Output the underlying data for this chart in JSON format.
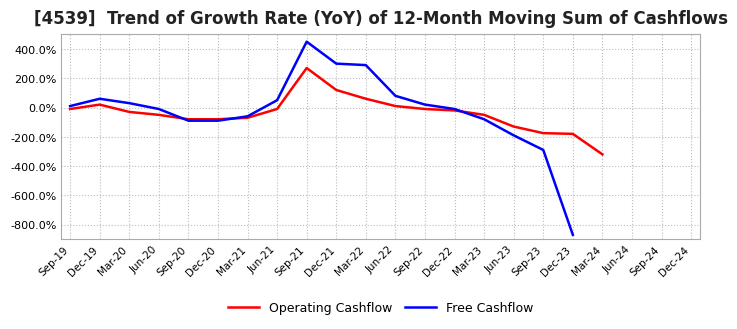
{
  "title": "[4539]  Trend of Growth Rate (YoY) of 12-Month Moving Sum of Cashflows",
  "title_fontsize": 12,
  "title_color": "#222222",
  "background_color": "#ffffff",
  "grid_color": "#bbbbbb",
  "ylim": [
    -900,
    500
  ],
  "yticks": [
    400,
    200,
    0,
    -200,
    -400,
    -600,
    -800
  ],
  "legend_labels": [
    "Operating Cashflow",
    "Free Cashflow"
  ],
  "legend_colors": [
    "red",
    "blue"
  ],
  "x_labels": [
    "Sep-19",
    "Dec-19",
    "Mar-20",
    "Jun-20",
    "Sep-20",
    "Dec-20",
    "Mar-21",
    "Jun-21",
    "Sep-21",
    "Dec-21",
    "Mar-22",
    "Jun-22",
    "Sep-22",
    "Dec-22",
    "Mar-23",
    "Jun-23",
    "Sep-23",
    "Dec-23",
    "Mar-24",
    "Jun-24",
    "Sep-24",
    "Dec-24"
  ],
  "operating_cashflow": [
    -10,
    20,
    -30,
    -50,
    -80,
    -80,
    -70,
    -10,
    270,
    120,
    60,
    10,
    -10,
    -20,
    -50,
    -130,
    -175,
    -180,
    -320,
    null,
    null,
    null
  ],
  "free_cashflow": [
    10,
    60,
    30,
    -10,
    -90,
    -90,
    -60,
    50,
    450,
    300,
    290,
    80,
    20,
    -10,
    -80,
    -190,
    -290,
    -870,
    null,
    null,
    null,
    null
  ]
}
